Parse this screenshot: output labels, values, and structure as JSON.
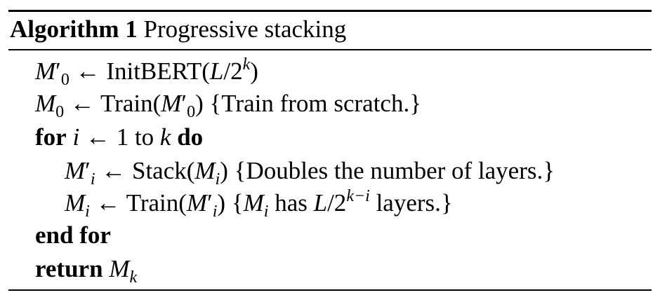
{
  "algorithm": {
    "label": "Algorithm 1",
    "title": "Progressive stacking",
    "lines": [
      {
        "var": "M",
        "var_sub": "0",
        "arrow": "←",
        "func": "InitBERT(",
        "arg_var": "L",
        "arg_div": "/2",
        "arg_sup": "k",
        "close": ")"
      },
      {
        "var": "M",
        "var_sub": "0",
        "arrow": "←",
        "func": "Train(",
        "arg_var": "M",
        "arg_sub": "0",
        "close": ")",
        "comment": "{Train from scratch.}"
      },
      {
        "kw_for": "for",
        "iter_var": "i",
        "arrow": "←",
        "start": "1",
        "kw_to": "to",
        "end_var": "k",
        "kw_do": "do"
      },
      {
        "var": "M",
        "var_sub": "i",
        "arrow": "←",
        "func": "Stack(",
        "arg_var": "M",
        "arg_sub": "i",
        "close": ")",
        "comment": "{Doubles the number of layers.}"
      },
      {
        "var": "M",
        "var_sub": "i",
        "arrow": "←",
        "func": "Train(",
        "arg_var": "M",
        "arg_sub": "i",
        "close": ")",
        "comment_open": "{",
        "comment_var": "M",
        "comment_sub": "i",
        "comment_has": "has",
        "comment_L": "L",
        "comment_div": "/2",
        "comment_sup": "k−i",
        "comment_end": "layers.}"
      },
      {
        "kw": "end for"
      },
      {
        "kw": "return",
        "var": "M",
        "var_sub": "k"
      }
    ]
  }
}
